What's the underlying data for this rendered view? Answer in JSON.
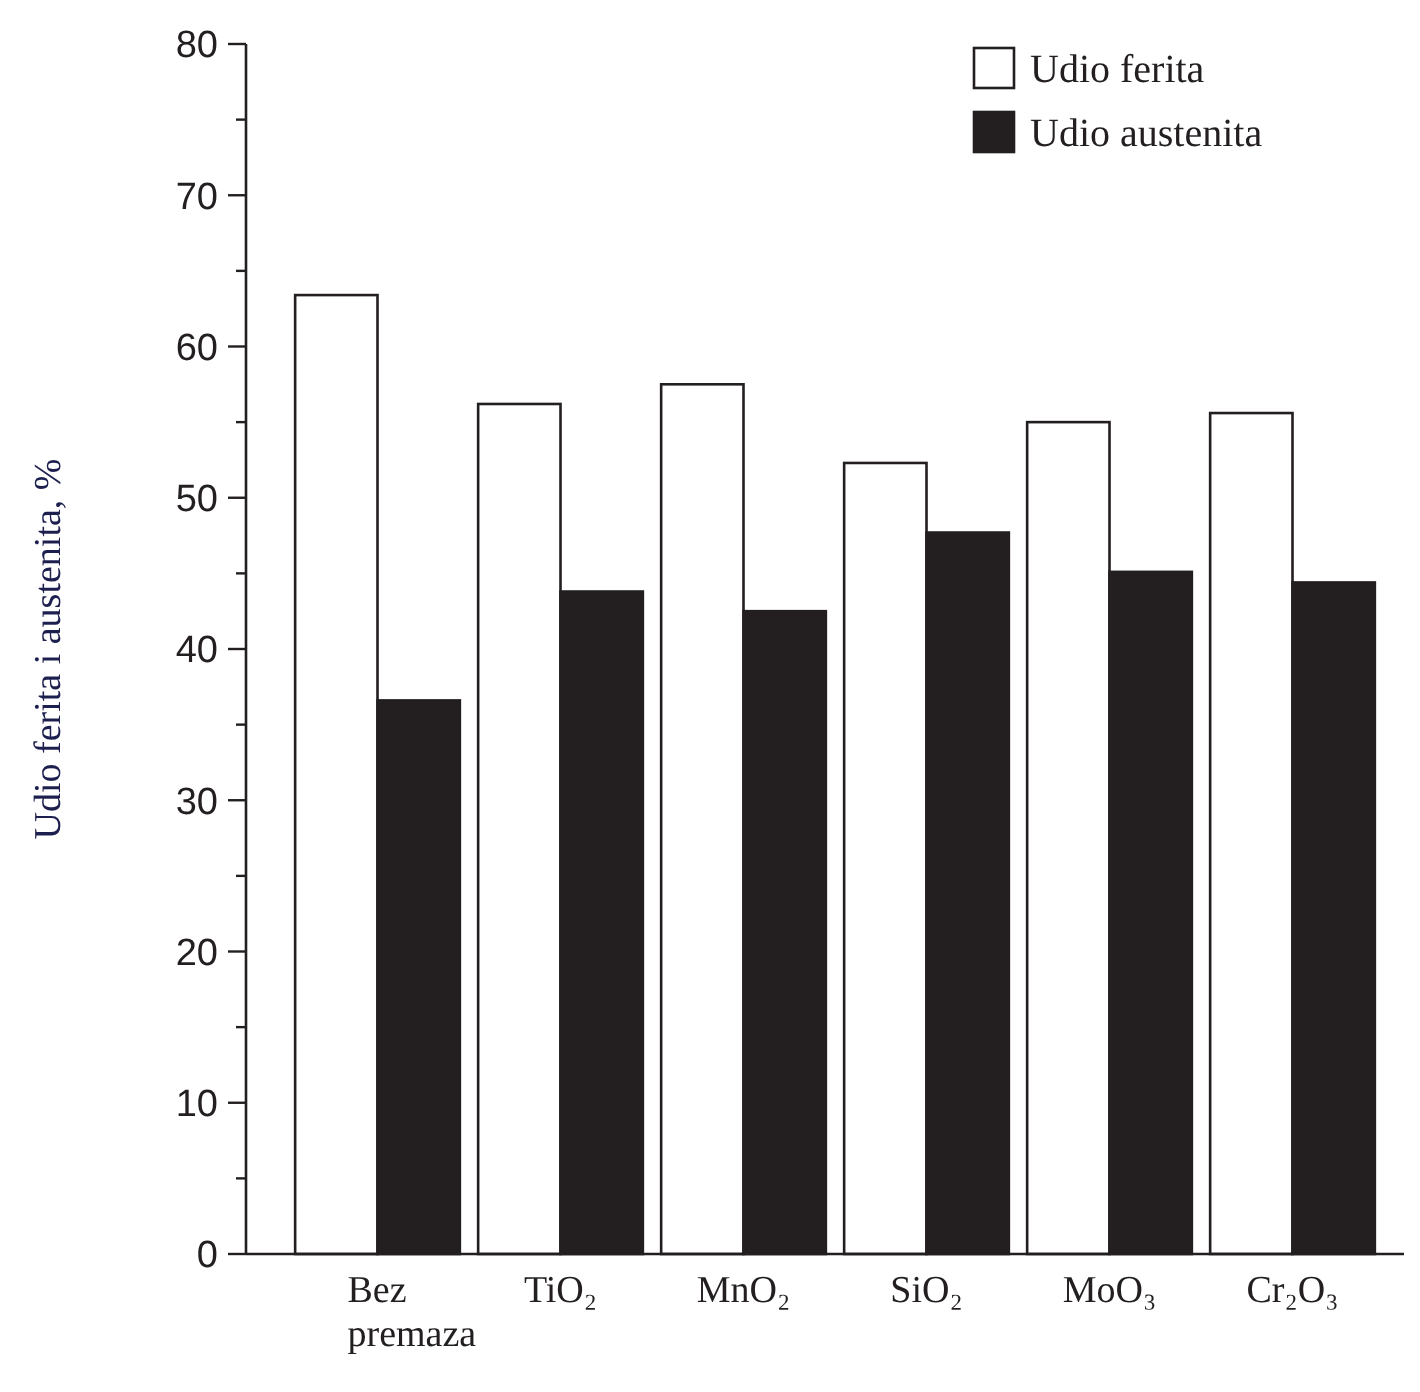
{
  "chart_data": {
    "type": "bar",
    "ylabel": "Udio ferita i austenita, %",
    "categories": [
      "Bez premaza",
      "TiO₂",
      "MnO₂",
      "SiO₂",
      "MoO₃",
      "Cr₂O₃"
    ],
    "series": [
      {
        "name": "Udio ferita",
        "color": "#ffffff",
        "values": [
          63.4,
          56.2,
          57.5,
          52.3,
          55.0,
          55.6
        ]
      },
      {
        "name": "Udio austenita",
        "color": "#231f20",
        "values": [
          36.6,
          43.8,
          42.5,
          47.7,
          45.1,
          44.4
        ]
      }
    ],
    "ylim": [
      0,
      80
    ],
    "yticks": [
      0,
      {
        "value": 5,
        "label": null
      },
      10,
      {
        "value": 15,
        "label": null
      },
      20,
      {
        "value": 25,
        "label": null
      },
      30,
      {
        "value": 35,
        "label": null
      },
      40,
      {
        "value": 45,
        "label": null
      },
      50,
      {
        "value": 55,
        "label": null
      },
      60,
      {
        "value": 65,
        "label": null
      },
      70,
      {
        "value": 75,
        "label": null
      },
      80
    ],
    "grid": false,
    "legend": "top right"
  }
}
